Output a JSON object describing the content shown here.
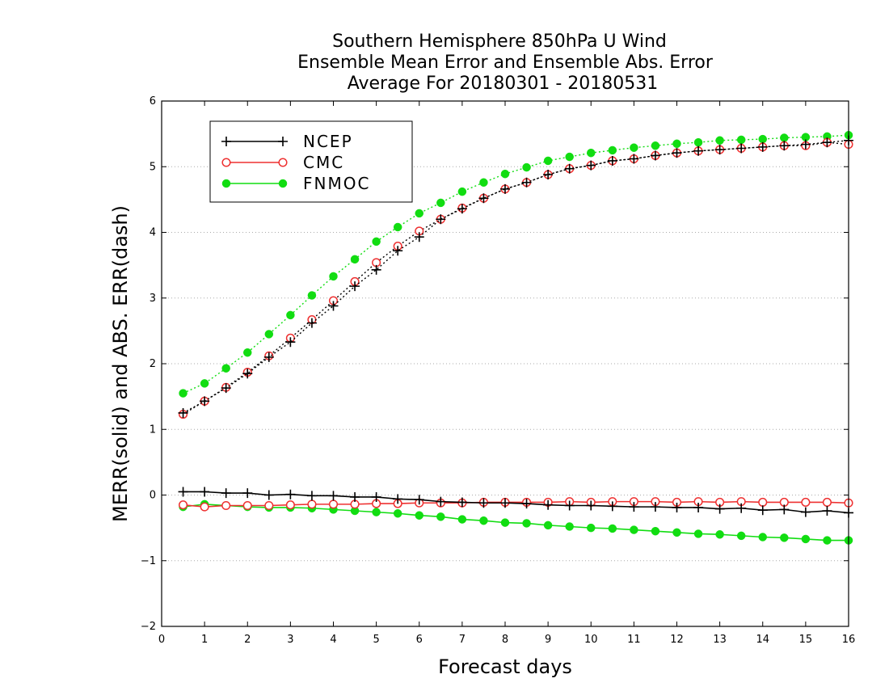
{
  "chart_data": {
    "type": "line",
    "title": "Southern Hemisphere 850hPa U Wind",
    "subtitle": "Ensemble Mean Error and Ensemble Abs. Error",
    "subtitle2": "Average For 20180301 - 20180531",
    "xlabel": "Forecast days",
    "ylabel": "MERR(solid) and ABS. ERR(dash)",
    "xlim": [
      0,
      16
    ],
    "ylim": [
      -2,
      6
    ],
    "xticks": [
      0,
      1,
      2,
      3,
      4,
      5,
      6,
      7,
      8,
      9,
      10,
      11,
      12,
      13,
      14,
      15,
      16
    ],
    "yticks": [
      -2,
      -1,
      0,
      1,
      2,
      3,
      4,
      5,
      6
    ],
    "grid": "horizontal dotted",
    "legend_position": "top-left",
    "x": [
      0.5,
      1,
      1.5,
      2,
      2.5,
      3,
      3.5,
      4,
      4.5,
      5,
      5.5,
      6,
      6.5,
      7,
      7.5,
      8,
      8.5,
      9,
      9.5,
      10,
      10.5,
      11,
      11.5,
      12,
      12.5,
      13,
      13.5,
      14,
      14.5,
      15,
      15.5,
      16
    ],
    "series": [
      {
        "name": "NCEP",
        "color": "#000000",
        "marker": "plus",
        "merr": [
          0.05,
          0.05,
          0.03,
          0.03,
          0.0,
          0.01,
          -0.01,
          -0.01,
          -0.03,
          -0.03,
          -0.06,
          -0.07,
          -0.1,
          -0.11,
          -0.12,
          -0.12,
          -0.13,
          -0.15,
          -0.16,
          -0.16,
          -0.17,
          -0.18,
          -0.18,
          -0.19,
          -0.19,
          -0.21,
          -0.2,
          -0.23,
          -0.22,
          -0.26,
          -0.24,
          -0.27
        ],
        "abs_err": [
          1.25,
          1.43,
          1.63,
          1.85,
          2.1,
          2.33,
          2.62,
          2.88,
          3.18,
          3.43,
          3.72,
          3.93,
          4.2,
          4.36,
          4.52,
          4.66,
          4.76,
          4.88,
          4.97,
          5.02,
          5.09,
          5.12,
          5.17,
          5.21,
          5.24,
          5.26,
          5.28,
          5.3,
          5.32,
          5.34,
          5.37,
          5.4
        ]
      },
      {
        "name": "CMC",
        "color": "#ee3030",
        "marker": "open-circle",
        "merr": [
          -0.15,
          -0.18,
          -0.16,
          -0.16,
          -0.16,
          -0.15,
          -0.14,
          -0.14,
          -0.14,
          -0.13,
          -0.13,
          -0.12,
          -0.12,
          -0.12,
          -0.11,
          -0.11,
          -0.11,
          -0.11,
          -0.1,
          -0.11,
          -0.1,
          -0.1,
          -0.1,
          -0.11,
          -0.1,
          -0.11,
          -0.1,
          -0.11,
          -0.11,
          -0.11,
          -0.11,
          -0.12
        ],
        "abs_err": [
          1.23,
          1.43,
          1.64,
          1.87,
          2.12,
          2.39,
          2.67,
          2.96,
          3.25,
          3.54,
          3.79,
          4.02,
          4.2,
          4.37,
          4.52,
          4.66,
          4.76,
          4.88,
          4.97,
          5.02,
          5.09,
          5.12,
          5.17,
          5.21,
          5.24,
          5.26,
          5.28,
          5.3,
          5.32,
          5.32,
          5.37,
          5.34
        ]
      },
      {
        "name": "FNMOC",
        "color": "#11dd11",
        "marker": "filled-circle",
        "merr": [
          -0.18,
          -0.14,
          -0.16,
          -0.18,
          -0.19,
          -0.19,
          -0.2,
          -0.22,
          -0.24,
          -0.26,
          -0.28,
          -0.31,
          -0.33,
          -0.37,
          -0.39,
          -0.42,
          -0.43,
          -0.46,
          -0.48,
          -0.5,
          -0.51,
          -0.53,
          -0.55,
          -0.57,
          -0.59,
          -0.6,
          -0.62,
          -0.64,
          -0.65,
          -0.67,
          -0.69,
          -0.69
        ],
        "abs_err": [
          1.55,
          1.7,
          1.93,
          2.17,
          2.45,
          2.74,
          3.04,
          3.33,
          3.59,
          3.86,
          4.08,
          4.29,
          4.45,
          4.62,
          4.76,
          4.89,
          4.99,
          5.09,
          5.15,
          5.21,
          5.25,
          5.29,
          5.32,
          5.35,
          5.37,
          5.4,
          5.41,
          5.42,
          5.44,
          5.45,
          5.46,
          5.48
        ]
      }
    ]
  }
}
